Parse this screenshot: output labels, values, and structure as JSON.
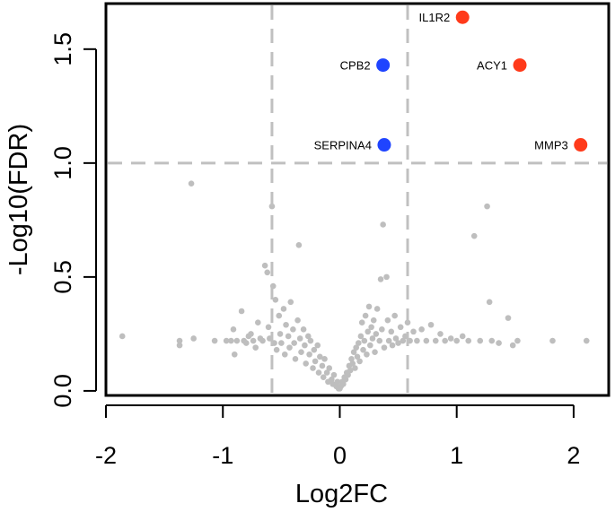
{
  "chart_data": {
    "type": "scatter",
    "xlabel": "Log2FC",
    "ylabel": "-Log10(FDR)",
    "xlim": [
      -2.0,
      2.3
    ],
    "ylim": [
      -0.02,
      1.7
    ],
    "x_ticks": [
      "-2",
      "-1",
      "0",
      "1",
      "2"
    ],
    "y_ticks": [
      "0.0",
      "0.5",
      "1.0",
      "1.5"
    ],
    "grid": false,
    "thresholds": {
      "log2fc": [
        -0.58,
        0.58
      ],
      "neg_log10_fdr": 1.0
    },
    "colors": {
      "background_points": "#bebebe",
      "up": "#ff3a1a",
      "down": "#1f44ff",
      "threshold_lines": "#c0c0c0"
    },
    "highlighted": [
      {
        "gene": "IL1R2",
        "x": 1.05,
        "y": 1.64,
        "direction": "up"
      },
      {
        "gene": "ACY1",
        "x": 1.54,
        "y": 1.43,
        "direction": "up"
      },
      {
        "gene": "MMP3",
        "x": 2.06,
        "y": 1.08,
        "direction": "up"
      },
      {
        "gene": "CPB2",
        "x": 0.37,
        "y": 1.43,
        "direction": "down"
      },
      {
        "gene": "SERPINA4",
        "x": 0.38,
        "y": 1.08,
        "direction": "down"
      }
    ],
    "background_points": [
      [
        -1.86,
        0.24
      ],
      [
        -1.37,
        0.22
      ],
      [
        -1.37,
        0.2
      ],
      [
        -1.27,
        0.91
      ],
      [
        -1.25,
        0.23
      ],
      [
        -1.07,
        0.22
      ],
      [
        -0.97,
        0.22
      ],
      [
        -0.93,
        0.22
      ],
      [
        -0.91,
        0.27
      ],
      [
        -0.9,
        0.16
      ],
      [
        -0.88,
        0.22
      ],
      [
        -0.84,
        0.35
      ],
      [
        -0.82,
        0.22
      ],
      [
        -0.8,
        0.21
      ],
      [
        -0.78,
        0.24
      ],
      [
        -0.76,
        0.25
      ],
      [
        -0.74,
        0.22
      ],
      [
        -0.72,
        0.19
      ],
      [
        -0.7,
        0.3
      ],
      [
        -0.68,
        0.23
      ],
      [
        -0.66,
        0.22
      ],
      [
        -0.64,
        0.55
      ],
      [
        -0.62,
        0.52
      ],
      [
        -0.61,
        0.28
      ],
      [
        -0.6,
        0.23
      ],
      [
        -0.58,
        0.81
      ],
      [
        -0.57,
        0.46
      ],
      [
        -0.56,
        0.21
      ],
      [
        -0.55,
        0.4
      ],
      [
        -0.54,
        0.18
      ],
      [
        -0.52,
        0.33
      ],
      [
        -0.51,
        0.25
      ],
      [
        -0.5,
        0.21
      ],
      [
        -0.48,
        0.36
      ],
      [
        -0.47,
        0.16
      ],
      [
        -0.46,
        0.29
      ],
      [
        -0.44,
        0.24
      ],
      [
        -0.43,
        0.19
      ],
      [
        -0.42,
        0.39
      ],
      [
        -0.4,
        0.27
      ],
      [
        -0.39,
        0.21
      ],
      [
        -0.38,
        0.14
      ],
      [
        -0.36,
        0.31
      ],
      [
        -0.35,
        0.64
      ],
      [
        -0.34,
        0.23
      ],
      [
        -0.33,
        0.17
      ],
      [
        -0.31,
        0.27
      ],
      [
        -0.3,
        0.2
      ],
      [
        -0.29,
        0.12
      ],
      [
        -0.27,
        0.24
      ],
      [
        -0.26,
        0.16
      ],
      [
        -0.25,
        0.22
      ],
      [
        -0.23,
        0.1
      ],
      [
        -0.22,
        0.18
      ],
      [
        -0.21,
        0.13
      ],
      [
        -0.19,
        0.2
      ],
      [
        -0.18,
        0.08
      ],
      [
        -0.17,
        0.15
      ],
      [
        -0.15,
        0.11
      ],
      [
        -0.14,
        0.06
      ],
      [
        -0.13,
        0.14
      ],
      [
        -0.11,
        0.08
      ],
      [
        -0.1,
        0.04
      ],
      [
        -0.09,
        0.1
      ],
      [
        -0.07,
        0.05
      ],
      [
        -0.06,
        0.03
      ],
      [
        -0.05,
        0.07
      ],
      [
        -0.03,
        0.02
      ],
      [
        -0.02,
        0.04
      ],
      [
        -0.01,
        0.01
      ],
      [
        0.0,
        0.01
      ],
      [
        0.01,
        0.02
      ],
      [
        0.02,
        0.04
      ],
      [
        0.03,
        0.03
      ],
      [
        0.04,
        0.06
      ],
      [
        0.05,
        0.05
      ],
      [
        0.06,
        0.08
      ],
      [
        0.07,
        0.07
      ],
      [
        0.08,
        0.11
      ],
      [
        0.09,
        0.09
      ],
      [
        0.1,
        0.14
      ],
      [
        0.11,
        0.12
      ],
      [
        0.12,
        0.17
      ],
      [
        0.13,
        0.1
      ],
      [
        0.14,
        0.19
      ],
      [
        0.15,
        0.15
      ],
      [
        0.16,
        0.21
      ],
      [
        0.17,
        0.13
      ],
      [
        0.18,
        0.24
      ],
      [
        0.19,
        0.3
      ],
      [
        0.2,
        0.18
      ],
      [
        0.21,
        0.22
      ],
      [
        0.22,
        0.33
      ],
      [
        0.23,
        0.16
      ],
      [
        0.24,
        0.26
      ],
      [
        0.25,
        0.37
      ],
      [
        0.26,
        0.2
      ],
      [
        0.27,
        0.28
      ],
      [
        0.28,
        0.23
      ],
      [
        0.29,
        0.31
      ],
      [
        0.3,
        0.17
      ],
      [
        0.31,
        0.25
      ],
      [
        0.32,
        0.36
      ],
      [
        0.34,
        0.22
      ],
      [
        0.35,
        0.49
      ],
      [
        0.36,
        0.27
      ],
      [
        0.37,
        0.73
      ],
      [
        0.38,
        0.19
      ],
      [
        0.4,
        0.5
      ],
      [
        0.41,
        0.31
      ],
      [
        0.42,
        0.22
      ],
      [
        0.44,
        0.26
      ],
      [
        0.45,
        0.2
      ],
      [
        0.47,
        0.33
      ],
      [
        0.48,
        0.23
      ],
      [
        0.5,
        0.21
      ],
      [
        0.52,
        0.28
      ],
      [
        0.54,
        0.22
      ],
      [
        0.56,
        0.24
      ],
      [
        0.58,
        0.3
      ],
      [
        0.6,
        0.22
      ],
      [
        0.63,
        0.26
      ],
      [
        0.66,
        0.22
      ],
      [
        0.7,
        0.27
      ],
      [
        0.74,
        0.22
      ],
      [
        0.78,
        0.29
      ],
      [
        0.82,
        0.22
      ],
      [
        0.86,
        0.25
      ],
      [
        0.9,
        0.22
      ],
      [
        0.95,
        0.23
      ],
      [
        1.0,
        0.22
      ],
      [
        1.05,
        0.24
      ],
      [
        1.1,
        0.22
      ],
      [
        1.15,
        0.68
      ],
      [
        1.2,
        0.22
      ],
      [
        1.26,
        0.81
      ],
      [
        1.28,
        0.39
      ],
      [
        1.3,
        0.22
      ],
      [
        1.36,
        0.21
      ],
      [
        1.44,
        0.32
      ],
      [
        1.48,
        0.2
      ],
      [
        1.52,
        0.22
      ],
      [
        1.82,
        0.22
      ],
      [
        2.11,
        0.22
      ]
    ]
  }
}
